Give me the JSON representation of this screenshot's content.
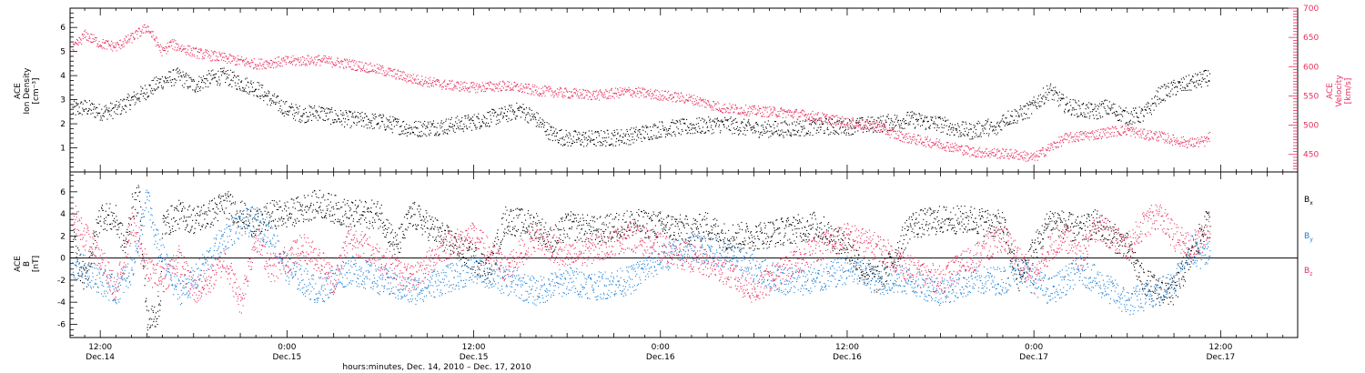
{
  "figure": {
    "xlabel": "hours:minutes, Dec. 14, 2010 – Dec. 17, 2010",
    "x_range_hours": [
      -1.94,
      76.95
    ],
    "x_ticks": [
      {
        "hour": 0,
        "time": "12:00",
        "date": "Dec.14"
      },
      {
        "hour": 12,
        "time": "0:00",
        "date": "Dec.15"
      },
      {
        "hour": 24,
        "time": "12:00",
        "date": "Dec.15"
      },
      {
        "hour": 36,
        "time": "0:00",
        "date": "Dec.16"
      },
      {
        "hour": 48,
        "time": "12:00",
        "date": "Dec.16"
      },
      {
        "hour": 60,
        "time": "0:00",
        "date": "Dec.17"
      },
      {
        "hour": 72,
        "time": "12:00",
        "date": "Dec.17"
      }
    ]
  },
  "chart_data": [
    {
      "type": "scatter",
      "panel": "top",
      "ylabel_left": [
        "ACE",
        "Ion Density",
        "[cm⁻³]"
      ],
      "ylabel_right": [
        "ACE",
        "Velocity",
        "[km/s]"
      ],
      "ylim_left": [
        0,
        6.8
      ],
      "ylim_right": [
        420,
        700
      ],
      "yticks_left": [
        1,
        2,
        3,
        4,
        5,
        6
      ],
      "yticks_right": [
        450,
        500,
        550,
        600,
        650,
        700
      ],
      "series": [
        {
          "axis": "left",
          "color": "#000000",
          "x": [
            -1.8,
            -1,
            0,
            1,
            1.5,
            2,
            3,
            4,
            5,
            6,
            7,
            8,
            9,
            10,
            11,
            12,
            13,
            14,
            15,
            16,
            18,
            20,
            22,
            24,
            26,
            27,
            28,
            29,
            30,
            32,
            34,
            36,
            38,
            40,
            42,
            44,
            46,
            48,
            50,
            52,
            54,
            55,
            56,
            57,
            57.5,
            58,
            59,
            59.7,
            60.3,
            61,
            62,
            63,
            64,
            64.5,
            65,
            66,
            67,
            67.5,
            68,
            69,
            70,
            71,
            71.3
          ],
          "y": [
            2.6,
            2.7,
            2.5,
            2.6,
            2.8,
            3.0,
            3.4,
            3.8,
            4.0,
            3.6,
            3.9,
            4.0,
            3.7,
            3.5,
            3.0,
            2.6,
            2.4,
            2.5,
            2.3,
            2.2,
            2.1,
            1.8,
            1.9,
            2.1,
            2.4,
            2.6,
            2.2,
            1.6,
            1.4,
            1.4,
            1.5,
            1.8,
            1.9,
            2.0,
            1.8,
            1.8,
            1.9,
            1.9,
            2.0,
            2.2,
            2.0,
            1.8,
            1.7,
            1.9,
            1.7,
            2.2,
            2.4,
            2.6,
            3.0,
            3.4,
            2.8,
            2.6,
            2.5,
            2.7,
            2.6,
            2.3,
            2.4,
            2.7,
            3.2,
            3.5,
            3.7,
            3.9,
            4.0
          ]
        },
        {
          "axis": "right",
          "color": "#e8305f",
          "x": [
            -1.8,
            -1,
            0,
            1,
            2,
            3,
            4,
            4.5,
            5,
            6,
            7,
            8,
            9,
            10,
            12,
            14,
            16,
            18,
            20,
            22,
            24,
            26,
            28,
            30,
            32,
            34,
            36,
            38,
            40,
            42,
            44,
            46,
            48,
            50,
            51,
            52,
            54,
            56,
            58,
            59,
            60,
            61,
            62,
            63,
            64,
            65,
            66,
            67,
            68,
            69,
            70,
            71,
            71.3
          ],
          "y": [
            630,
            655,
            640,
            635,
            650,
            668,
            625,
            640,
            635,
            625,
            620,
            615,
            610,
            605,
            610,
            612,
            605,
            595,
            580,
            570,
            565,
            568,
            560,
            555,
            552,
            558,
            552,
            545,
            530,
            525,
            522,
            515,
            505,
            498,
            485,
            478,
            468,
            455,
            452,
            450,
            445,
            462,
            478,
            482,
            485,
            490,
            492,
            485,
            482,
            475,
            470,
            473,
            482
          ]
        }
      ]
    },
    {
      "type": "scatter",
      "panel": "bottom",
      "ylabel_left": [
        "ACE",
        "B",
        "[nT]"
      ],
      "ylim": [
        -7.2,
        7.8
      ],
      "yticks": [
        -6,
        -4,
        -2,
        0,
        2,
        4,
        6
      ],
      "series": [
        {
          "name": "Bx",
          "color": "#000000",
          "x": [
            -1.8,
            -1.5,
            -1,
            0,
            1,
            1.6,
            2,
            2.5,
            3,
            3.8,
            4,
            5,
            6,
            7,
            8,
            9,
            10,
            11,
            12,
            13,
            14,
            15,
            16,
            18,
            19,
            20,
            22,
            24,
            25,
            26,
            28,
            29,
            30,
            32,
            34,
            36,
            38,
            39,
            40,
            42,
            44,
            46,
            48,
            49,
            50,
            51,
            52,
            54,
            56,
            58,
            59,
            60,
            60.5,
            61,
            62,
            63,
            64,
            65,
            66,
            67,
            68,
            69,
            70,
            71,
            71.3
          ],
          "y": [
            2,
            0,
            -2,
            4,
            3.5,
            1,
            4.5,
            5.5,
            -6,
            -4.5,
            3,
            4,
            3.5,
            4,
            5,
            4,
            3,
            4,
            4,
            4.5,
            5,
            4.5,
            4,
            4,
            1,
            4,
            2,
            0,
            -1,
            3.5,
            3,
            1.5,
            3,
            2.5,
            3.2,
            3,
            2.5,
            3,
            2,
            2,
            2.5,
            3,
            1,
            -1,
            -2,
            0,
            3,
            3.5,
            3.5,
            3,
            -2,
            1,
            2,
            3.5,
            3,
            2.5,
            3.2,
            2,
            1,
            -2,
            -3,
            -3,
            0,
            3,
            3.2
          ]
        },
        {
          "name": "By",
          "color": "#1a7fd6",
          "x": [
            -1.8,
            -1,
            0,
            1,
            2,
            3,
            3.5,
            4,
            5,
            6,
            7,
            8,
            9,
            10,
            11,
            12,
            13,
            14,
            15,
            16,
            18,
            20,
            22,
            24,
            26,
            28,
            30,
            32,
            34,
            36,
            38,
            40,
            42,
            44,
            46,
            48,
            50,
            52,
            54,
            56,
            58,
            59,
            60,
            61,
            62,
            63,
            64,
            65,
            66,
            67,
            68,
            69,
            70,
            71,
            71.3
          ],
          "y": [
            -0.5,
            -1,
            -2,
            -3,
            -1,
            5.5,
            2,
            0,
            -3,
            -2,
            0,
            2,
            3,
            3.5,
            2,
            -1,
            -2,
            -3,
            -2,
            -1,
            -2,
            -3,
            -2,
            -1,
            -2,
            -3,
            -2,
            -2.5,
            -2,
            0,
            1,
            0.5,
            -1,
            -2,
            -2,
            -1,
            -2,
            -2,
            -3,
            -2,
            -2,
            -1,
            -2,
            -3,
            -2,
            -1,
            -2,
            -3,
            -4,
            -3.5,
            -3,
            -2,
            1,
            0,
            0.5
          ]
        },
        {
          "name": "Bz",
          "color": "#e8305f",
          "x": [
            -1.8,
            -1,
            0,
            1,
            2,
            3,
            4,
            5,
            6,
            7,
            8,
            9,
            10,
            11,
            12,
            13,
            14,
            15,
            16,
            18,
            20,
            22,
            24,
            26,
            28,
            30,
            32,
            34,
            36,
            38,
            40,
            42,
            44,
            46,
            48,
            50,
            52,
            54,
            56,
            58,
            60,
            61,
            62,
            63,
            64,
            65,
            66,
            67,
            68,
            69,
            70,
            71,
            71.3
          ],
          "y": [
            4,
            2,
            0,
            -3,
            3,
            -1,
            -2,
            0,
            -3,
            -2,
            0,
            -4,
            2,
            -1,
            0,
            1,
            0,
            -2,
            2,
            0,
            -2,
            1,
            2,
            -1,
            2,
            0,
            1,
            2,
            1,
            0,
            -1,
            -3,
            -1,
            1,
            2,
            1,
            -1,
            -2,
            0,
            2,
            -2,
            1,
            2,
            0,
            3,
            2,
            1,
            3,
            4,
            2,
            1,
            2,
            3.5
          ]
        }
      ]
    }
  ]
}
